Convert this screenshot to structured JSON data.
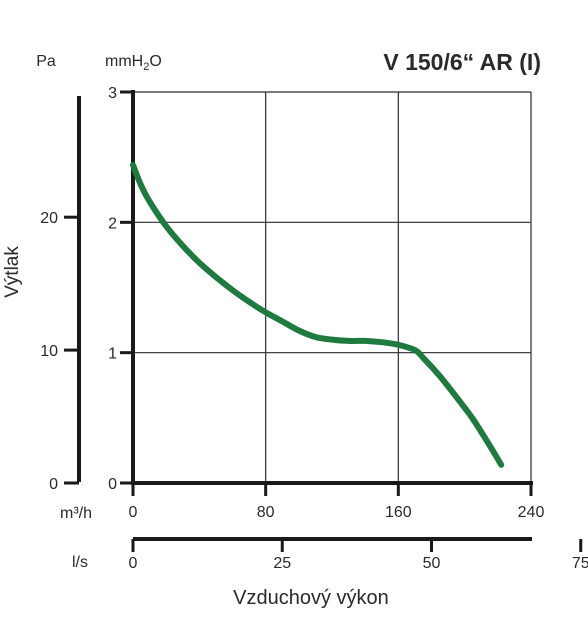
{
  "chart_data": {
    "type": "line",
    "title": "V 150/6“ AR (I)",
    "ylabel": "Výtlak",
    "xlabel": "Vzduchový výkon",
    "x_unit": "m³/h",
    "x2_unit": "l/s",
    "y_unit_pa": "Pa",
    "y_unit_mmh2o_base": "mmH",
    "y_unit_mmh2o_sub": "2",
    "y_unit_mmh2o_end": "O",
    "xlim": [
      0,
      240
    ],
    "ylim_mmh2o": [
      0,
      3
    ],
    "x_ticks": [
      "0",
      "80",
      "160",
      "240"
    ],
    "x2_ticks": [
      "0",
      "25",
      "50",
      "75"
    ],
    "y_mmh2o_ticks": [
      "0",
      "1",
      "2",
      "3"
    ],
    "y_pa_ticks": [
      "0",
      "10",
      "20"
    ],
    "grid": true,
    "series_color": "#1e7a3e",
    "series": [
      {
        "x": [
          0,
          5,
          10,
          20,
          30,
          40,
          50,
          60,
          70,
          80,
          90,
          100,
          110,
          120,
          130,
          140,
          150,
          160,
          170,
          175,
          185,
          195,
          205,
          215,
          222
        ],
        "y": [
          2.44,
          2.28,
          2.16,
          1.97,
          1.82,
          1.69,
          1.58,
          1.48,
          1.39,
          1.31,
          1.24,
          1.17,
          1.12,
          1.1,
          1.09,
          1.09,
          1.08,
          1.06,
          1.02,
          0.96,
          0.82,
          0.66,
          0.49,
          0.29,
          0.14
        ]
      }
    ]
  }
}
